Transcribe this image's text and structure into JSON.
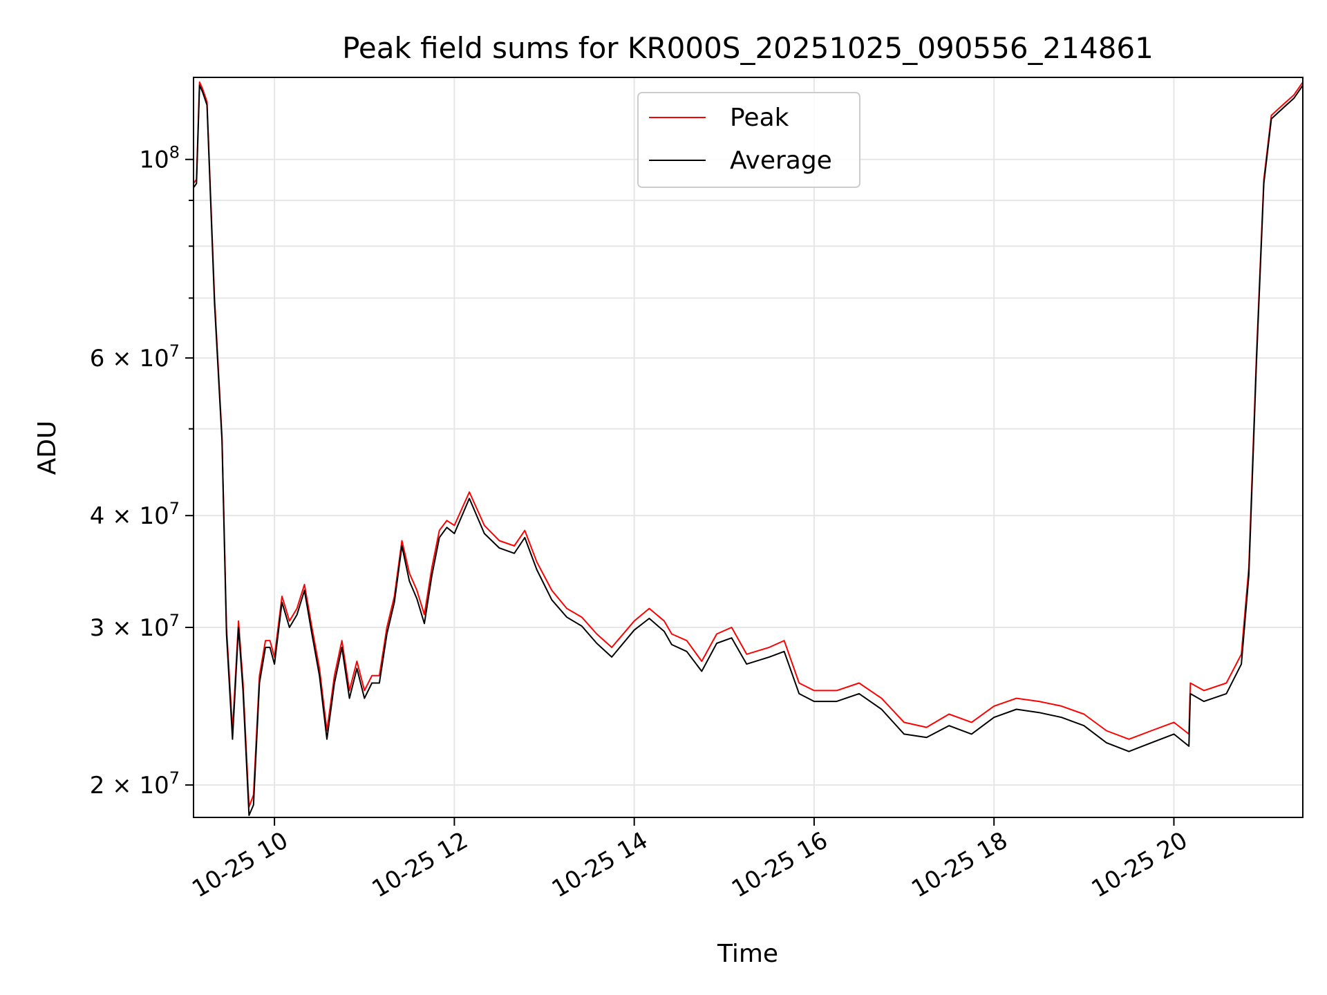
{
  "chart_data": {
    "type": "line",
    "title": "Peak field sums for KR000S_20251025_090556_214861",
    "xlabel": "Time",
    "ylabel": "ADU",
    "yscale": "log",
    "grid": true,
    "legend_position": "top-center",
    "xlim": [
      "2025-10-25 09:06",
      "2025-10-25 21:26"
    ],
    "ylim": [
      18400000,
      123500000
    ],
    "x_ticks": [
      {
        "value": "2025-10-25 10:00",
        "label": "10-25 10"
      },
      {
        "value": "2025-10-25 12:00",
        "label": "10-25 12"
      },
      {
        "value": "2025-10-25 14:00",
        "label": "10-25 14"
      },
      {
        "value": "2025-10-25 16:00",
        "label": "10-25 16"
      },
      {
        "value": "2025-10-25 18:00",
        "label": "10-25 18"
      },
      {
        "value": "2025-10-25 20:00",
        "label": "10-25 20"
      }
    ],
    "y_ticks": [
      {
        "value": 20000000,
        "label_base": "2 × 10",
        "label_exp": "7"
      },
      {
        "value": 30000000,
        "label_base": "3 × 10",
        "label_exp": "7"
      },
      {
        "value": 40000000,
        "label_base": "4 × 10",
        "label_exp": "7"
      },
      {
        "value": 60000000,
        "label_base": "6 × 10",
        "label_exp": "7"
      },
      {
        "value": 100000000,
        "label_base": "10",
        "label_exp": "8"
      }
    ],
    "y_minor_ticks": [
      50000000,
      70000000,
      80000000,
      90000000
    ],
    "series": [
      {
        "name": "Peak",
        "color": "#ff0000",
        "x": [
          "2025-10-25 09:06",
          "2025-10-25 09:08",
          "2025-10-25 09:10",
          "2025-10-25 09:12",
          "2025-10-25 09:15",
          "2025-10-25 09:20",
          "2025-10-25 09:25",
          "2025-10-25 09:28",
          "2025-10-25 09:32",
          "2025-10-25 09:36",
          "2025-10-25 09:39",
          "2025-10-25 09:43",
          "2025-10-25 09:46",
          "2025-10-25 09:50",
          "2025-10-25 09:54",
          "2025-10-25 09:57",
          "2025-10-25 10:00",
          "2025-10-25 10:05",
          "2025-10-25 10:10",
          "2025-10-25 10:15",
          "2025-10-25 10:20",
          "2025-10-25 10:25",
          "2025-10-25 10:30",
          "2025-10-25 10:35",
          "2025-10-25 10:40",
          "2025-10-25 10:45",
          "2025-10-25 10:50",
          "2025-10-25 10:55",
          "2025-10-25 11:00",
          "2025-10-25 11:05",
          "2025-10-25 11:10",
          "2025-10-25 11:15",
          "2025-10-25 11:20",
          "2025-10-25 11:25",
          "2025-10-25 11:30",
          "2025-10-25 11:35",
          "2025-10-25 11:40",
          "2025-10-25 11:45",
          "2025-10-25 11:50",
          "2025-10-25 11:55",
          "2025-10-25 12:00",
          "2025-10-25 12:10",
          "2025-10-25 12:20",
          "2025-10-25 12:30",
          "2025-10-25 12:40",
          "2025-10-25 12:47",
          "2025-10-25 12:55",
          "2025-10-25 13:05",
          "2025-10-25 13:15",
          "2025-10-25 13:25",
          "2025-10-25 13:35",
          "2025-10-25 13:45",
          "2025-10-25 14:00",
          "2025-10-25 14:10",
          "2025-10-25 14:20",
          "2025-10-25 14:25",
          "2025-10-25 14:35",
          "2025-10-25 14:45",
          "2025-10-25 14:55",
          "2025-10-25 15:05",
          "2025-10-25 15:15",
          "2025-10-25 15:30",
          "2025-10-25 15:40",
          "2025-10-25 15:50",
          "2025-10-25 16:00",
          "2025-10-25 16:15",
          "2025-10-25 16:30",
          "2025-10-25 16:45",
          "2025-10-25 17:00",
          "2025-10-25 17:15",
          "2025-10-25 17:30",
          "2025-10-25 17:45",
          "2025-10-25 18:00",
          "2025-10-25 18:15",
          "2025-10-25 18:30",
          "2025-10-25 18:45",
          "2025-10-25 19:00",
          "2025-10-25 19:15",
          "2025-10-25 19:30",
          "2025-10-25 19:45",
          "2025-10-25 20:00",
          "2025-10-25 20:10",
          "2025-10-25 20:11",
          "2025-10-25 20:20",
          "2025-10-25 20:35",
          "2025-10-25 20:45",
          "2025-10-25 20:50",
          "2025-10-25 20:55",
          "2025-10-25 21:00",
          "2025-10-25 21:05",
          "2025-10-25 21:10",
          "2025-10-25 21:15",
          "2025-10-25 21:20",
          "2025-10-25 21:26"
        ],
        "y": [
          94000000,
          95000000,
          122000000,
          120000000,
          116000000,
          70000000,
          49000000,
          30000000,
          23000000,
          30500000,
          26000000,
          18900000,
          19500000,
          26500000,
          29000000,
          29000000,
          27800000,
          32500000,
          30500000,
          31500000,
          33500000,
          30000000,
          27000000,
          23000000,
          26500000,
          29000000,
          25500000,
          27500000,
          25500000,
          26500000,
          26500000,
          30000000,
          32500000,
          37500000,
          34500000,
          33000000,
          31000000,
          35000000,
          38500000,
          39500000,
          39000000,
          42500000,
          39000000,
          37500000,
          37000000,
          38500000,
          35500000,
          33000000,
          31500000,
          30800000,
          29500000,
          28500000,
          30500000,
          31500000,
          30500000,
          29500000,
          29000000,
          27500000,
          29500000,
          30000000,
          28000000,
          28500000,
          29000000,
          26000000,
          25500000,
          25500000,
          26000000,
          25000000,
          23500000,
          23200000,
          24000000,
          23500000,
          24500000,
          25000000,
          24800000,
          24500000,
          24000000,
          23000000,
          22500000,
          23000000,
          23500000,
          22800000,
          26000000,
          25500000,
          26000000,
          28000000,
          35000000,
          60000000,
          95000000,
          112000000,
          114000000,
          116000000,
          118000000,
          122000000
        ]
      },
      {
        "name": "Average",
        "color": "#000000",
        "x": [
          "2025-10-25 09:06",
          "2025-10-25 09:08",
          "2025-10-25 09:10",
          "2025-10-25 09:12",
          "2025-10-25 09:15",
          "2025-10-25 09:20",
          "2025-10-25 09:25",
          "2025-10-25 09:28",
          "2025-10-25 09:32",
          "2025-10-25 09:36",
          "2025-10-25 09:39",
          "2025-10-25 09:43",
          "2025-10-25 09:46",
          "2025-10-25 09:50",
          "2025-10-25 09:54",
          "2025-10-25 09:57",
          "2025-10-25 10:00",
          "2025-10-25 10:05",
          "2025-10-25 10:10",
          "2025-10-25 10:15",
          "2025-10-25 10:20",
          "2025-10-25 10:25",
          "2025-10-25 10:30",
          "2025-10-25 10:35",
          "2025-10-25 10:40",
          "2025-10-25 10:45",
          "2025-10-25 10:50",
          "2025-10-25 10:55",
          "2025-10-25 11:00",
          "2025-10-25 11:05",
          "2025-10-25 11:10",
          "2025-10-25 11:15",
          "2025-10-25 11:20",
          "2025-10-25 11:25",
          "2025-10-25 11:30",
          "2025-10-25 11:35",
          "2025-10-25 11:40",
          "2025-10-25 11:45",
          "2025-10-25 11:50",
          "2025-10-25 11:55",
          "2025-10-25 12:00",
          "2025-10-25 12:10",
          "2025-10-25 12:20",
          "2025-10-25 12:30",
          "2025-10-25 12:40",
          "2025-10-25 12:47",
          "2025-10-25 12:55",
          "2025-10-25 13:05",
          "2025-10-25 13:15",
          "2025-10-25 13:25",
          "2025-10-25 13:35",
          "2025-10-25 13:45",
          "2025-10-25 14:00",
          "2025-10-25 14:10",
          "2025-10-25 14:20",
          "2025-10-25 14:25",
          "2025-10-25 14:35",
          "2025-10-25 14:45",
          "2025-10-25 14:55",
          "2025-10-25 15:05",
          "2025-10-25 15:15",
          "2025-10-25 15:30",
          "2025-10-25 15:40",
          "2025-10-25 15:50",
          "2025-10-25 16:00",
          "2025-10-25 16:15",
          "2025-10-25 16:30",
          "2025-10-25 16:45",
          "2025-10-25 17:00",
          "2025-10-25 17:15",
          "2025-10-25 17:30",
          "2025-10-25 17:45",
          "2025-10-25 18:00",
          "2025-10-25 18:15",
          "2025-10-25 18:30",
          "2025-10-25 18:45",
          "2025-10-25 19:00",
          "2025-10-25 19:15",
          "2025-10-25 19:30",
          "2025-10-25 19:45",
          "2025-10-25 20:00",
          "2025-10-25 20:10",
          "2025-10-25 20:11",
          "2025-10-25 20:20",
          "2025-10-25 20:35",
          "2025-10-25 20:45",
          "2025-10-25 20:50",
          "2025-10-25 20:55",
          "2025-10-25 21:00",
          "2025-10-25 21:05",
          "2025-10-25 21:10",
          "2025-10-25 21:15",
          "2025-10-25 21:20",
          "2025-10-25 21:26"
        ],
        "y": [
          93000000,
          94000000,
          121000000,
          119000000,
          115000000,
          69000000,
          48500000,
          29500000,
          22500000,
          30000000,
          25500000,
          18500000,
          19000000,
          26000000,
          28500000,
          28500000,
          27300000,
          32000000,
          30000000,
          31000000,
          33000000,
          29500000,
          26500000,
          22500000,
          26000000,
          28500000,
          25000000,
          27000000,
          25000000,
          26000000,
          26000000,
          29500000,
          32000000,
          37000000,
          33800000,
          32300000,
          30300000,
          34300000,
          37800000,
          38800000,
          38200000,
          41800000,
          38200000,
          36800000,
          36300000,
          37800000,
          34800000,
          32200000,
          30800000,
          30100000,
          28800000,
          27800000,
          29800000,
          30700000,
          29700000,
          28700000,
          28200000,
          26800000,
          28800000,
          29200000,
          27300000,
          27800000,
          28200000,
          25300000,
          24800000,
          24800000,
          25300000,
          24300000,
          22800000,
          22600000,
          23300000,
          22800000,
          23800000,
          24300000,
          24100000,
          23800000,
          23300000,
          22300000,
          21800000,
          22300000,
          22800000,
          22100000,
          25300000,
          24800000,
          25300000,
          27300000,
          34300000,
          59000000,
          94000000,
          111000000,
          113000000,
          115000000,
          117000000,
          121000000
        ]
      }
    ]
  }
}
